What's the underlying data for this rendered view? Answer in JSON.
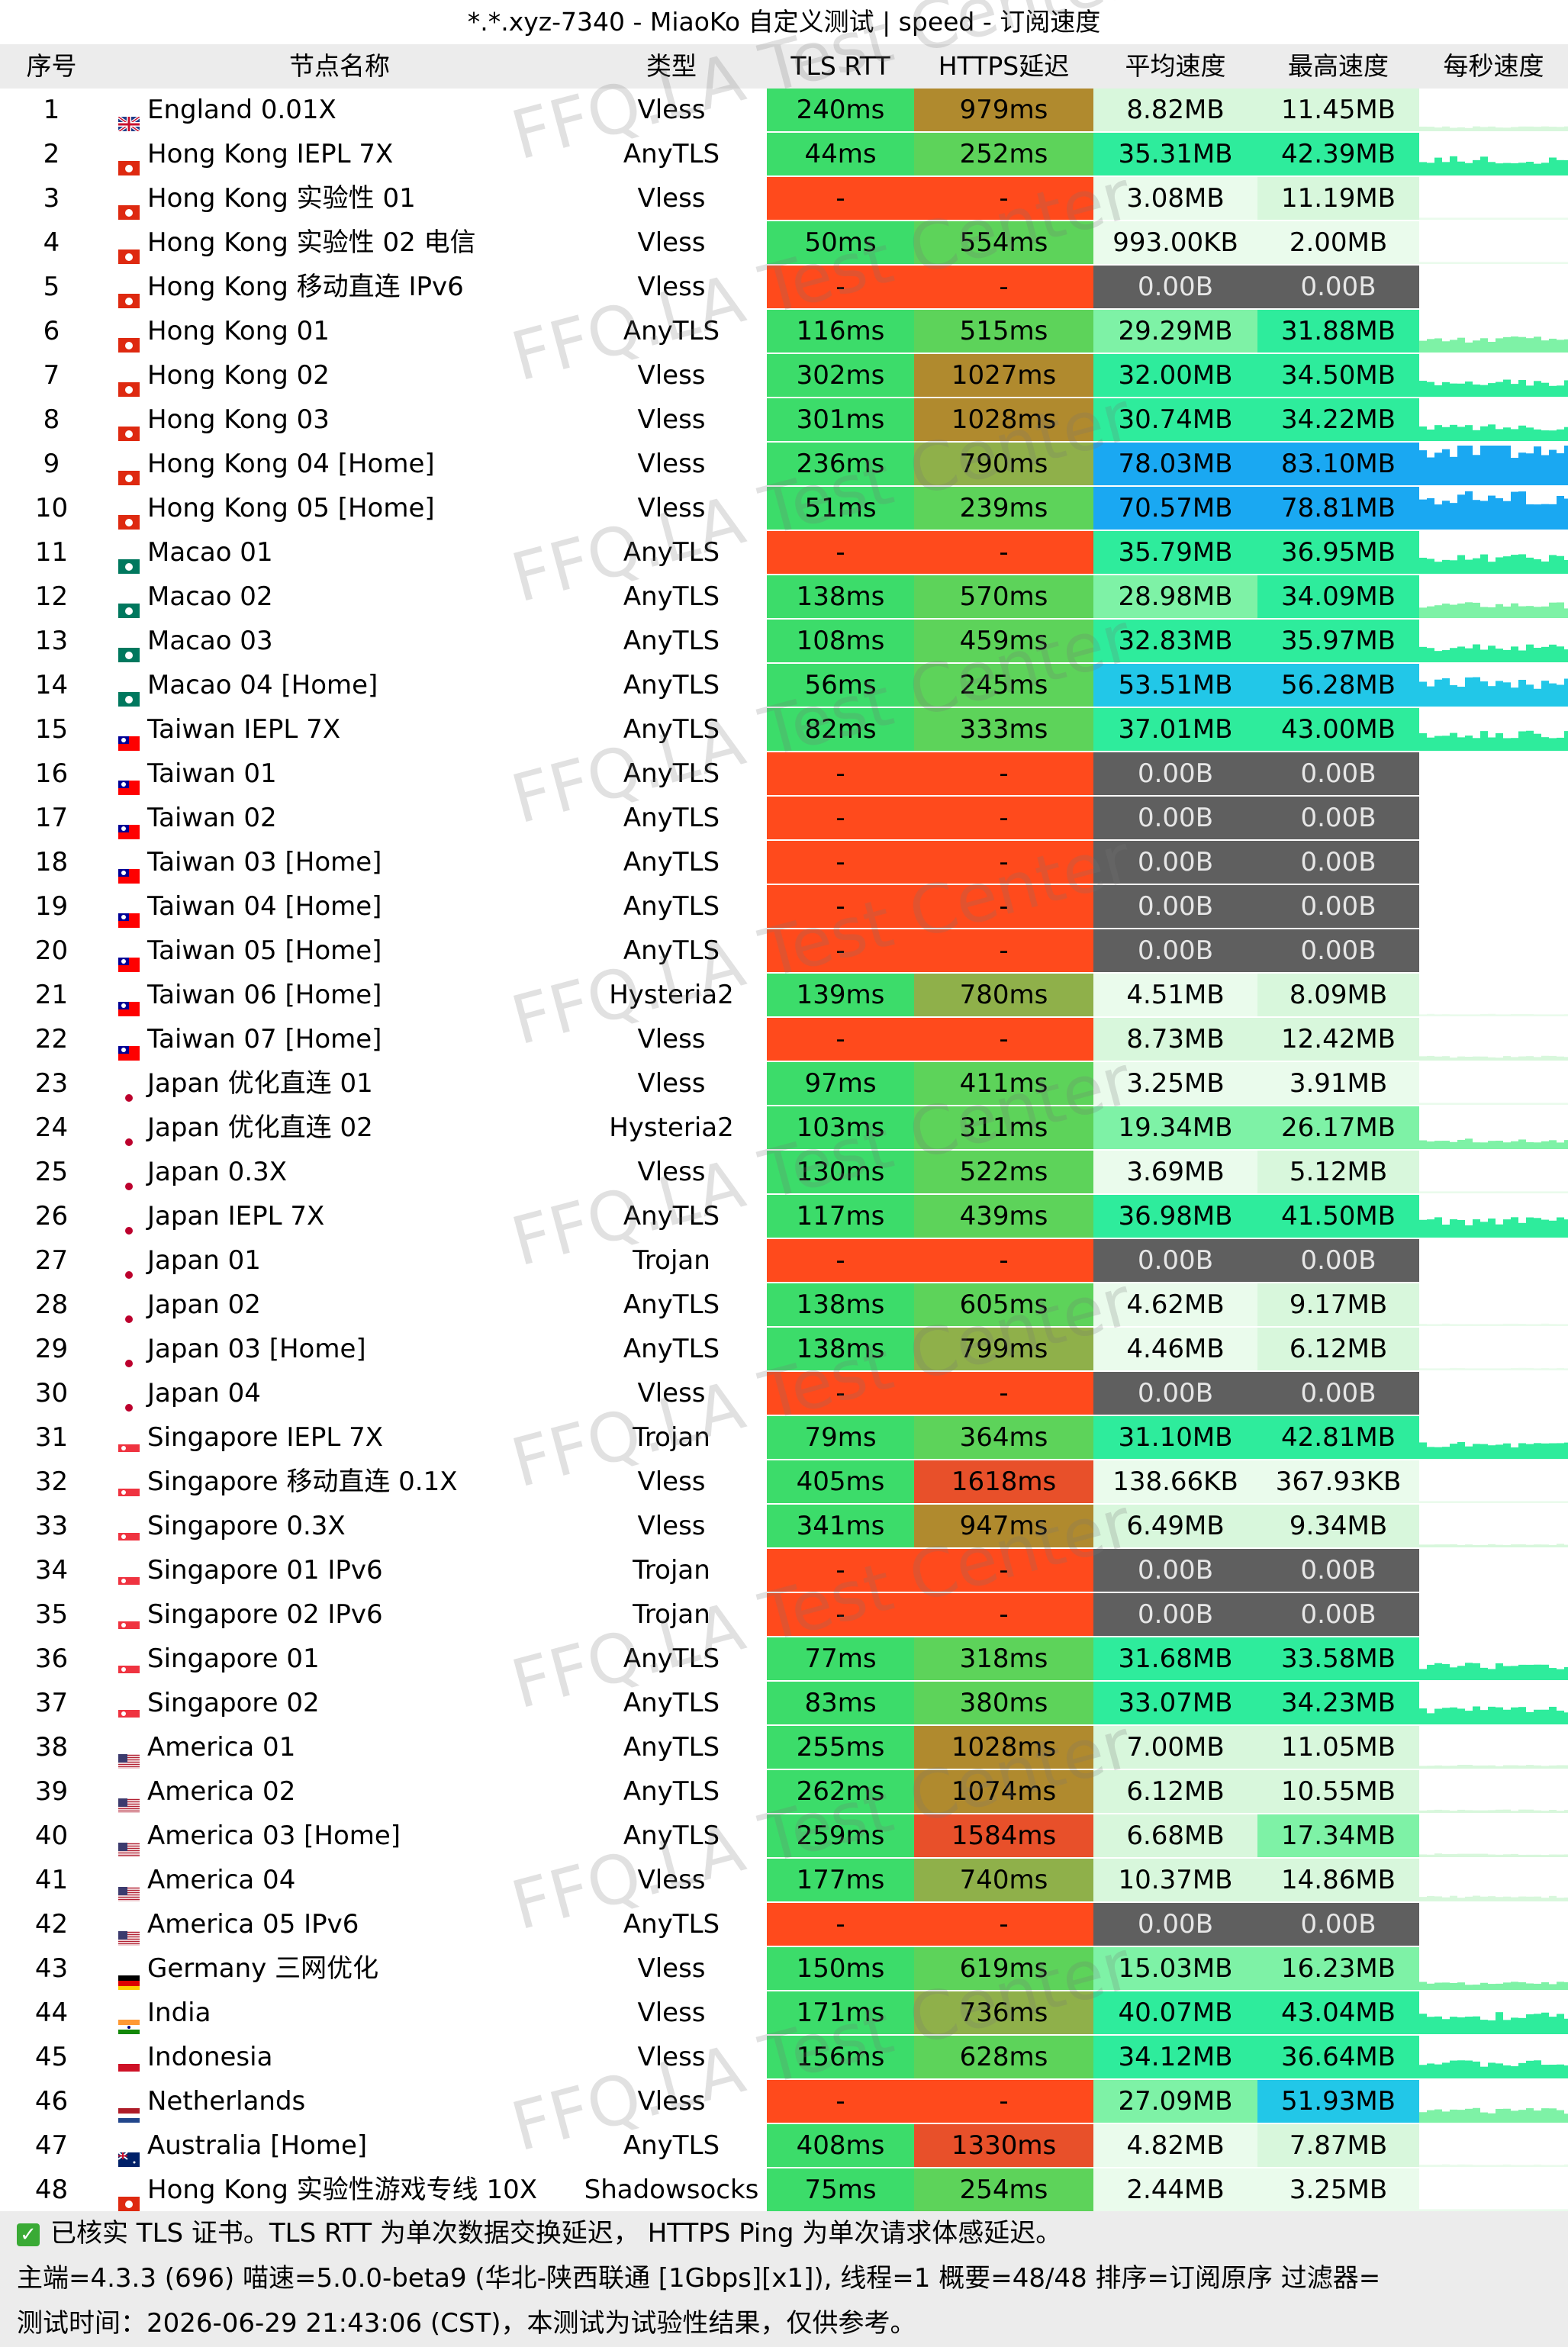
{
  "window_title": "*.*.xyz-7340 - MiaoKo 自定义测试 | speed - 订阅速度",
  "columns": [
    "序号",
    "节点名称",
    "类型",
    "TLS RTT",
    "HTTPS延迟",
    "平均速度",
    "最高速度",
    "每秒速度"
  ],
  "watermark": "FFQ.LA Test Center",
  "colors": {
    "tls_good": "#3cdc6a",
    "https_good": "#5dd35a",
    "https_mid": "#8fb04a",
    "https_slow": "#b08a2e",
    "https_bad": "#e8502a",
    "fail": "#ff4a1c",
    "speed_none": "#5f5f5f",
    "speed_low": "#d8f7dc",
    "speed_mid": "#7ef2a6",
    "speed_good": "#2eec9c",
    "speed_high": "#22c7e8",
    "speed_top": "#1aa8f2"
  },
  "rows": [
    {
      "idx": "1",
      "flag": "gb",
      "name": "England 0.01X",
      "type": "Vless",
      "tls": "240ms",
      "https": "979ms",
      "avg": "8.82MB",
      "max": "11.45MB"
    },
    {
      "idx": "2",
      "flag": "hk",
      "name": "Hong Kong IEPL 7X",
      "type": "AnyTLS",
      "tls": "44ms",
      "https": "252ms",
      "avg": "35.31MB",
      "max": "42.39MB"
    },
    {
      "idx": "3",
      "flag": "hk",
      "name": "Hong Kong 实验性 01",
      "type": "Vless",
      "tls": "-",
      "https": "-",
      "avg": "3.08MB",
      "max": "11.19MB"
    },
    {
      "idx": "4",
      "flag": "hk",
      "name": "Hong Kong 实验性 02 电信",
      "type": "Vless",
      "tls": "50ms",
      "https": "554ms",
      "avg": "993.00KB",
      "max": "2.00MB"
    },
    {
      "idx": "5",
      "flag": "hk",
      "name": "Hong Kong 移动直连 IPv6",
      "type": "Vless",
      "tls": "-",
      "https": "-",
      "avg": "0.00B",
      "max": "0.00B"
    },
    {
      "idx": "6",
      "flag": "hk",
      "name": "Hong Kong 01",
      "type": "AnyTLS",
      "tls": "116ms",
      "https": "515ms",
      "avg": "29.29MB",
      "max": "31.88MB"
    },
    {
      "idx": "7",
      "flag": "hk",
      "name": "Hong Kong 02",
      "type": "Vless",
      "tls": "302ms",
      "https": "1027ms",
      "avg": "32.00MB",
      "max": "34.50MB"
    },
    {
      "idx": "8",
      "flag": "hk",
      "name": "Hong Kong 03",
      "type": "Vless",
      "tls": "301ms",
      "https": "1028ms",
      "avg": "30.74MB",
      "max": "34.22MB"
    },
    {
      "idx": "9",
      "flag": "hk",
      "name": "Hong Kong 04 [Home]",
      "type": "Vless",
      "tls": "236ms",
      "https": "790ms",
      "avg": "78.03MB",
      "max": "83.10MB"
    },
    {
      "idx": "10",
      "flag": "hk",
      "name": "Hong Kong 05 [Home]",
      "type": "Vless",
      "tls": "51ms",
      "https": "239ms",
      "avg": "70.57MB",
      "max": "78.81MB"
    },
    {
      "idx": "11",
      "flag": "mo",
      "name": "Macao 01",
      "type": "AnyTLS",
      "tls": "-",
      "https": "-",
      "avg": "35.79MB",
      "max": "36.95MB"
    },
    {
      "idx": "12",
      "flag": "mo",
      "name": "Macao 02",
      "type": "AnyTLS",
      "tls": "138ms",
      "https": "570ms",
      "avg": "28.98MB",
      "max": "34.09MB"
    },
    {
      "idx": "13",
      "flag": "mo",
      "name": "Macao 03",
      "type": "AnyTLS",
      "tls": "108ms",
      "https": "459ms",
      "avg": "32.83MB",
      "max": "35.97MB"
    },
    {
      "idx": "14",
      "flag": "mo",
      "name": "Macao 04 [Home]",
      "type": "AnyTLS",
      "tls": "56ms",
      "https": "245ms",
      "avg": "53.51MB",
      "max": "56.28MB"
    },
    {
      "idx": "15",
      "flag": "tw",
      "name": "Taiwan IEPL 7X",
      "type": "AnyTLS",
      "tls": "82ms",
      "https": "333ms",
      "avg": "37.01MB",
      "max": "43.00MB"
    },
    {
      "idx": "16",
      "flag": "tw",
      "name": "Taiwan 01",
      "type": "AnyTLS",
      "tls": "-",
      "https": "-",
      "avg": "0.00B",
      "max": "0.00B"
    },
    {
      "idx": "17",
      "flag": "tw",
      "name": "Taiwan 02",
      "type": "AnyTLS",
      "tls": "-",
      "https": "-",
      "avg": "0.00B",
      "max": "0.00B"
    },
    {
      "idx": "18",
      "flag": "tw",
      "name": "Taiwan 03 [Home]",
      "type": "AnyTLS",
      "tls": "-",
      "https": "-",
      "avg": "0.00B",
      "max": "0.00B"
    },
    {
      "idx": "19",
      "flag": "tw",
      "name": "Taiwan 04 [Home]",
      "type": "AnyTLS",
      "tls": "-",
      "https": "-",
      "avg": "0.00B",
      "max": "0.00B"
    },
    {
      "idx": "20",
      "flag": "tw",
      "name": "Taiwan 05 [Home]",
      "type": "AnyTLS",
      "tls": "-",
      "https": "-",
      "avg": "0.00B",
      "max": "0.00B"
    },
    {
      "idx": "21",
      "flag": "tw",
      "name": "Taiwan 06 [Home]",
      "type": "Hysteria2",
      "tls": "139ms",
      "https": "780ms",
      "avg": "4.51MB",
      "max": "8.09MB"
    },
    {
      "idx": "22",
      "flag": "tw",
      "name": "Taiwan 07 [Home]",
      "type": "Vless",
      "tls": "-",
      "https": "-",
      "avg": "8.73MB",
      "max": "12.42MB"
    },
    {
      "idx": "23",
      "flag": "jp",
      "name": "Japan 优化直连 01",
      "type": "Vless",
      "tls": "97ms",
      "https": "411ms",
      "avg": "3.25MB",
      "max": "3.91MB"
    },
    {
      "idx": "24",
      "flag": "jp",
      "name": "Japan 优化直连 02",
      "type": "Hysteria2",
      "tls": "103ms",
      "https": "311ms",
      "avg": "19.34MB",
      "max": "26.17MB"
    },
    {
      "idx": "25",
      "flag": "jp",
      "name": "Japan 0.3X",
      "type": "Vless",
      "tls": "130ms",
      "https": "522ms",
      "avg": "3.69MB",
      "max": "5.12MB"
    },
    {
      "idx": "26",
      "flag": "jp",
      "name": "Japan IEPL 7X",
      "type": "AnyTLS",
      "tls": "117ms",
      "https": "439ms",
      "avg": "36.98MB",
      "max": "41.50MB"
    },
    {
      "idx": "27",
      "flag": "jp",
      "name": "Japan 01",
      "type": "Trojan",
      "tls": "-",
      "https": "-",
      "avg": "0.00B",
      "max": "0.00B"
    },
    {
      "idx": "28",
      "flag": "jp",
      "name": "Japan 02",
      "type": "AnyTLS",
      "tls": "138ms",
      "https": "605ms",
      "avg": "4.62MB",
      "max": "9.17MB"
    },
    {
      "idx": "29",
      "flag": "jp",
      "name": "Japan 03 [Home]",
      "type": "AnyTLS",
      "tls": "138ms",
      "https": "799ms",
      "avg": "4.46MB",
      "max": "6.12MB"
    },
    {
      "idx": "30",
      "flag": "jp",
      "name": "Japan 04",
      "type": "Vless",
      "tls": "-",
      "https": "-",
      "avg": "0.00B",
      "max": "0.00B"
    },
    {
      "idx": "31",
      "flag": "sg",
      "name": "Singapore IEPL 7X",
      "type": "Trojan",
      "tls": "79ms",
      "https": "364ms",
      "avg": "31.10MB",
      "max": "42.81MB"
    },
    {
      "idx": "32",
      "flag": "sg",
      "name": "Singapore 移动直连 0.1X",
      "type": "Vless",
      "tls": "405ms",
      "https": "1618ms",
      "avg": "138.66KB",
      "max": "367.93KB"
    },
    {
      "idx": "33",
      "flag": "sg",
      "name": "Singapore 0.3X",
      "type": "Vless",
      "tls": "341ms",
      "https": "947ms",
      "avg": "6.49MB",
      "max": "9.34MB"
    },
    {
      "idx": "34",
      "flag": "sg",
      "name": "Singapore 01 IPv6",
      "type": "Trojan",
      "tls": "-",
      "https": "-",
      "avg": "0.00B",
      "max": "0.00B"
    },
    {
      "idx": "35",
      "flag": "sg",
      "name": "Singapore 02 IPv6",
      "type": "Trojan",
      "tls": "-",
      "https": "-",
      "avg": "0.00B",
      "max": "0.00B"
    },
    {
      "idx": "36",
      "flag": "sg",
      "name": "Singapore 01",
      "type": "AnyTLS",
      "tls": "77ms",
      "https": "318ms",
      "avg": "31.68MB",
      "max": "33.58MB"
    },
    {
      "idx": "37",
      "flag": "sg",
      "name": "Singapore 02",
      "type": "AnyTLS",
      "tls": "83ms",
      "https": "380ms",
      "avg": "33.07MB",
      "max": "34.23MB"
    },
    {
      "idx": "38",
      "flag": "us",
      "name": "America 01",
      "type": "AnyTLS",
      "tls": "255ms",
      "https": "1028ms",
      "avg": "7.00MB",
      "max": "11.05MB"
    },
    {
      "idx": "39",
      "flag": "us",
      "name": "America 02",
      "type": "AnyTLS",
      "tls": "262ms",
      "https": "1074ms",
      "avg": "6.12MB",
      "max": "10.55MB"
    },
    {
      "idx": "40",
      "flag": "us",
      "name": "America 03 [Home]",
      "type": "AnyTLS",
      "tls": "259ms",
      "https": "1584ms",
      "avg": "6.68MB",
      "max": "17.34MB"
    },
    {
      "idx": "41",
      "flag": "us",
      "name": "America 04",
      "type": "Vless",
      "tls": "177ms",
      "https": "740ms",
      "avg": "10.37MB",
      "max": "14.86MB"
    },
    {
      "idx": "42",
      "flag": "us",
      "name": "America 05 IPv6",
      "type": "AnyTLS",
      "tls": "-",
      "https": "-",
      "avg": "0.00B",
      "max": "0.00B"
    },
    {
      "idx": "43",
      "flag": "de",
      "name": "Germany 三网优化",
      "type": "Vless",
      "tls": "150ms",
      "https": "619ms",
      "avg": "15.03MB",
      "max": "16.23MB"
    },
    {
      "idx": "44",
      "flag": "in",
      "name": "India",
      "type": "Vless",
      "tls": "171ms",
      "https": "736ms",
      "avg": "40.07MB",
      "max": "43.04MB"
    },
    {
      "idx": "45",
      "flag": "id",
      "name": "Indonesia",
      "type": "Vless",
      "tls": "156ms",
      "https": "628ms",
      "avg": "34.12MB",
      "max": "36.64MB"
    },
    {
      "idx": "46",
      "flag": "nl",
      "name": "Netherlands",
      "type": "Vless",
      "tls": "-",
      "https": "-",
      "avg": "27.09MB",
      "max": "51.93MB"
    },
    {
      "idx": "47",
      "flag": "au",
      "name": "Australia [Home]",
      "type": "AnyTLS",
      "tls": "408ms",
      "https": "1330ms",
      "avg": "4.82MB",
      "max": "7.87MB"
    },
    {
      "idx": "48",
      "flag": "hk",
      "name": "Hong Kong 实验性游戏专线 10X",
      "type": "Shadowsocks",
      "tls": "75ms",
      "https": "254ms",
      "avg": "2.44MB",
      "max": "3.25MB"
    }
  ],
  "footer": {
    "line1": "已核实 TLS 证书。TLS RTT 为单次数据交换延迟， HTTPS Ping 为单次请求体感延迟。",
    "line2": "主端=4.3.3 (696) 喵速=5.0.0-beta9 (华北-陕西联通 [1Gbps][x1]), 线程=1 概要=48/48 排序=订阅原序 过滤器=",
    "line3": "测试时间：2026-06-29 21:43:06 (CST)，本测试为试验性结果，仅供参考。"
  }
}
